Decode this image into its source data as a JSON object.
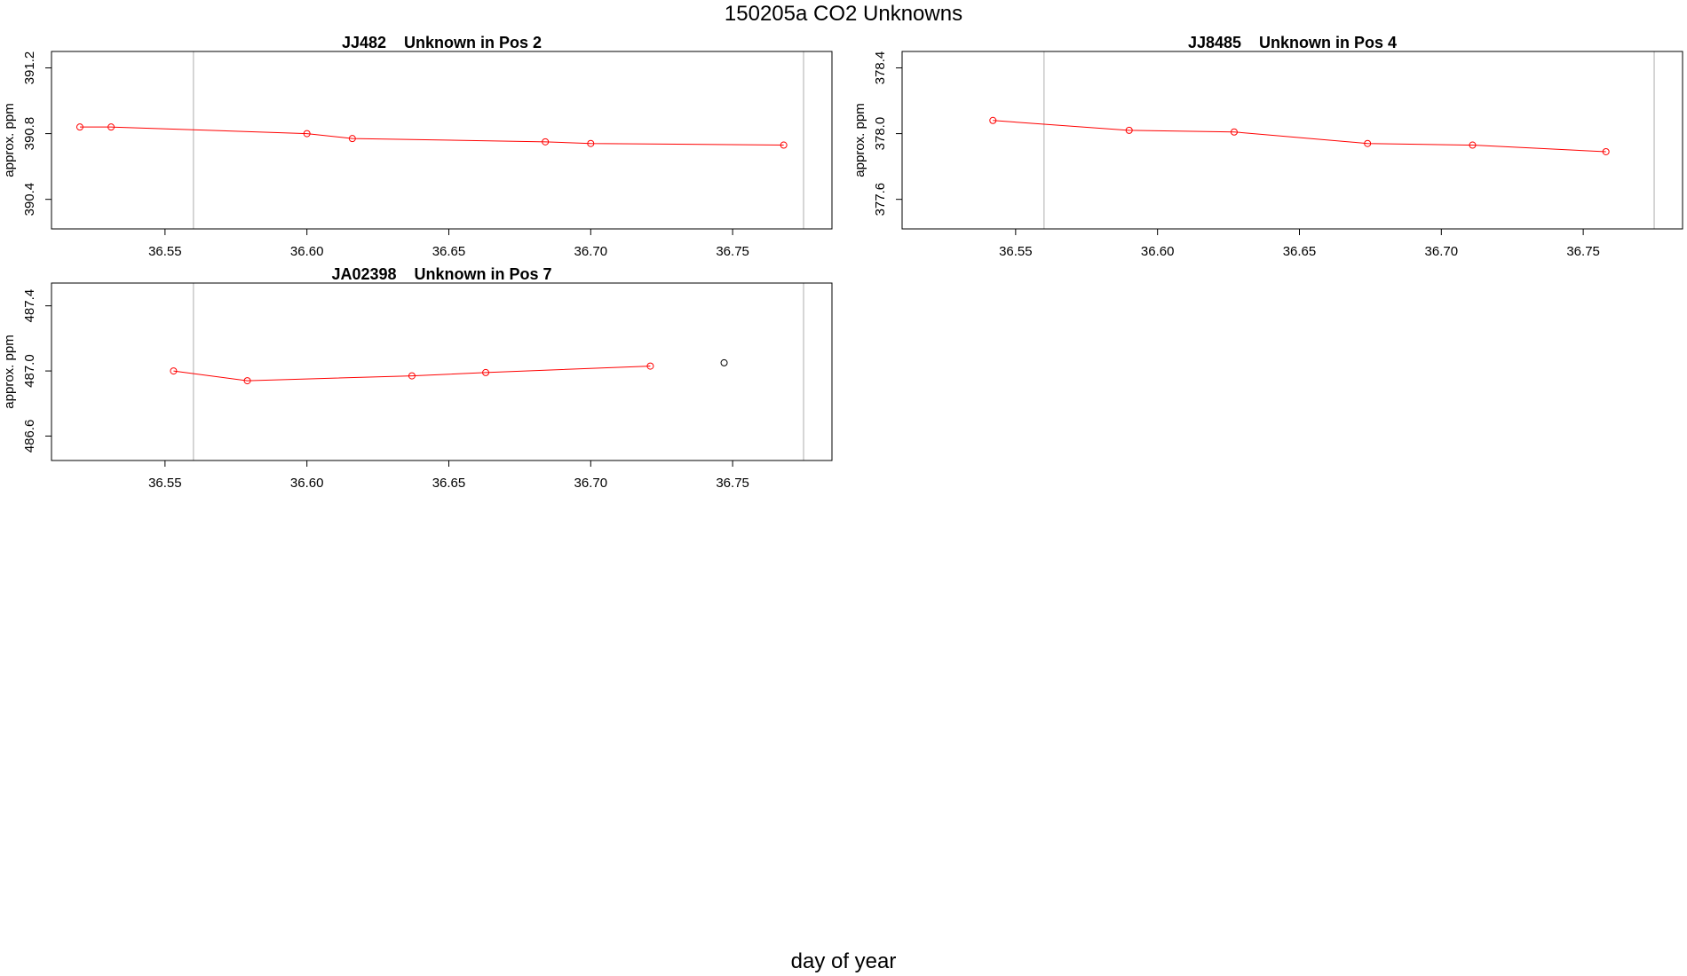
{
  "figure": {
    "title": "150205a  CO2 Unknowns",
    "xlabel": "day of year"
  },
  "chart_data": [
    {
      "type": "line",
      "title": "JJ482    Unknown in Pos 2",
      "ylabel": "approx. ppm",
      "xlim": [
        36.51,
        36.785
      ],
      "ylim": [
        390.22,
        391.3
      ],
      "xticks": [
        "36.55",
        "36.60",
        "36.65",
        "36.70",
        "36.75"
      ],
      "yticks": [
        "390.4",
        "390.8",
        "391.2"
      ],
      "vlines": [
        36.56,
        36.775
      ],
      "series": [
        {
          "color": "#ff0000",
          "x": [
            36.52,
            36.531,
            36.6,
            36.616,
            36.684,
            36.7,
            36.768
          ],
          "y": [
            390.84,
            390.84,
            390.8,
            390.77,
            390.75,
            390.74,
            390.73
          ]
        }
      ]
    },
    {
      "type": "line",
      "title": "JJ8485    Unknown in Pos 4",
      "ylabel": "approx. ppm",
      "xlim": [
        36.51,
        36.785
      ],
      "ylim": [
        377.42,
        378.5
      ],
      "xticks": [
        "36.55",
        "36.60",
        "36.65",
        "36.70",
        "36.75"
      ],
      "yticks": [
        "377.6",
        "378.0",
        "378.4"
      ],
      "vlines": [
        36.56,
        36.775
      ],
      "series": [
        {
          "color": "#ff0000",
          "x": [
            36.542,
            36.59,
            36.627,
            36.674,
            36.711,
            36.758
          ],
          "y": [
            378.08,
            378.02,
            378.01,
            377.94,
            377.93,
            377.89
          ]
        }
      ]
    },
    {
      "type": "line",
      "title": "JA02398    Unknown in Pos 7",
      "ylabel": "approx. ppm",
      "xlim": [
        36.51,
        36.785
      ],
      "ylim": [
        486.45,
        487.54
      ],
      "xticks": [
        "36.55",
        "36.60",
        "36.65",
        "36.70",
        "36.75"
      ],
      "yticks": [
        "486.6",
        "487.0",
        "487.4"
      ],
      "vlines": [
        36.56,
        36.775
      ],
      "series": [
        {
          "color": "#ff0000",
          "x": [
            36.553,
            36.579,
            36.637,
            36.663,
            36.721
          ],
          "y": [
            487.0,
            486.94,
            486.97,
            486.99,
            487.03
          ]
        },
        {
          "color": "#000000",
          "line": false,
          "x": [
            36.747
          ],
          "y": [
            487.05
          ]
        }
      ]
    }
  ]
}
